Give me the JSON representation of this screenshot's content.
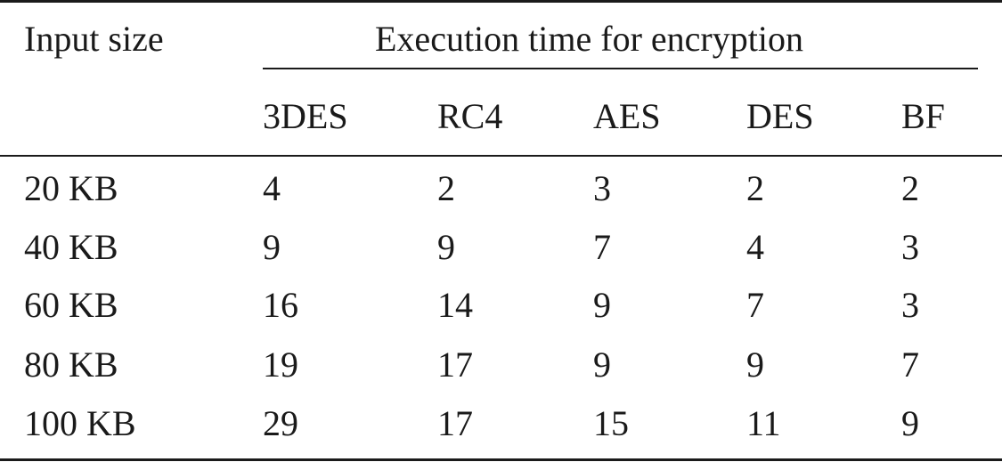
{
  "table": {
    "header_input": "Input size",
    "header_group": "Execution time for encryption",
    "columns": [
      "3DES",
      "RC4",
      "AES",
      "DES",
      "BF"
    ],
    "rows": [
      {
        "input": "20 KB",
        "values": [
          "4",
          "2",
          "3",
          "2",
          "2"
        ]
      },
      {
        "input": "40 KB",
        "values": [
          "9",
          "9",
          "7",
          "4",
          "3"
        ]
      },
      {
        "input": "60 KB",
        "values": [
          "16",
          "14",
          "9",
          "7",
          "3"
        ]
      },
      {
        "input": "80 KB",
        "values": [
          "19",
          "17",
          "9",
          "9",
          "7"
        ]
      },
      {
        "input": "100 KB",
        "values": [
          "29",
          "17",
          "15",
          "11",
          "9"
        ]
      }
    ]
  }
}
